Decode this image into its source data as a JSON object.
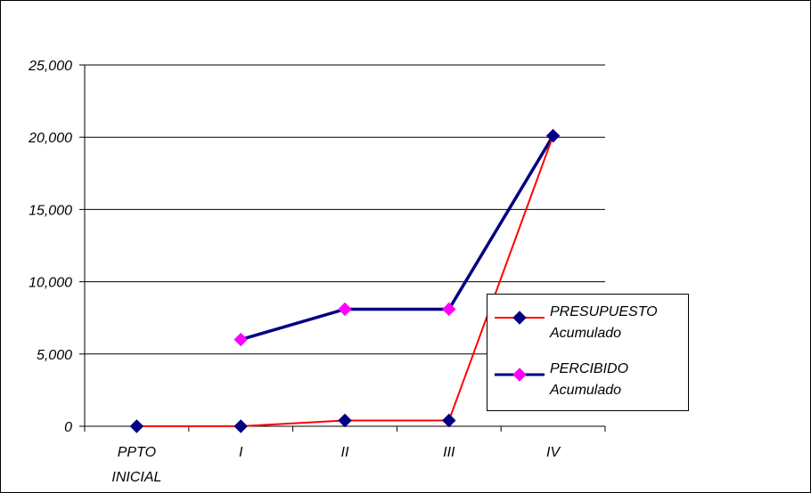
{
  "chart_data": {
    "type": "line",
    "categories": [
      "PPTO\nINICIAL",
      "I",
      "II",
      "III",
      "IV"
    ],
    "ylim": [
      0,
      25000
    ],
    "yticks": [
      "0",
      "5,000",
      "10,000",
      "15,000",
      "20,000",
      "25,000"
    ],
    "grid": true,
    "legend_position": "right",
    "series": [
      {
        "name": "PRESUPUESTO\nAcumulado",
        "line_color": "#ff0000",
        "marker": "diamond",
        "marker_color": "#000080",
        "values": [
          0,
          0,
          400,
          400,
          20100
        ]
      },
      {
        "name": "PERCIBIDO\nAcumulado",
        "line_color": "#000080",
        "marker": "diamond",
        "marker_color": "#ff00ff",
        "values": [
          null,
          6000,
          8100,
          8100,
          20100
        ]
      }
    ]
  }
}
